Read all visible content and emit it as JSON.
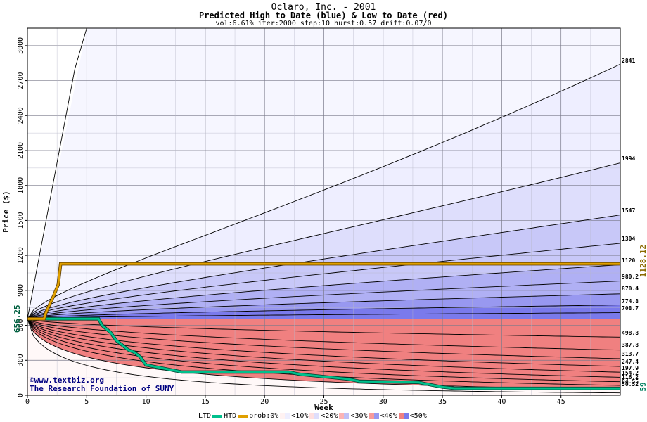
{
  "titles": {
    "main": "Oclaro, Inc. - 2001",
    "sub": "Predicted High to Date (blue) &  Low to Date (red)",
    "params": "vol:6.61% iter:2000 step:10 hurst:0.57 drift:0.07/0"
  },
  "credits": {
    "line1": "©www.textbiz.org",
    "line2": "The Research Foundation of SUNY"
  },
  "legend": {
    "ltd": "LTD",
    "htd": "HTD",
    "prob": "prob:0%",
    "b10": "<10%",
    "b20": "<20%",
    "b30": "<30%",
    "b40": "<40%",
    "b50": "<50%"
  },
  "colors": {
    "ltd": "#00c08c",
    "htd": "#e0a000",
    "blue_bands": [
      "#eeeeff",
      "#dedefc",
      "#c8c8f8",
      "#b0b0f4",
      "#9898f0",
      "#7a7aec"
    ],
    "red_bands": [
      "#fff2f2",
      "#ffe0e0",
      "#ffcccc",
      "#fcb4b4",
      "#f89a9a",
      "#f08080"
    ]
  },
  "chart_data": {
    "type": "line",
    "xlabel": "Week",
    "ylabel": "Price ($)",
    "xlim": [
      0,
      50
    ],
    "ylim": [
      0,
      3150
    ],
    "xticks": [
      0,
      5,
      10,
      15,
      20,
      25,
      30,
      35,
      40,
      45
    ],
    "yticks": [
      0,
      300,
      600,
      900,
      1200,
      1500,
      1800,
      2100,
      2400,
      2700,
      3000
    ],
    "start_price": 656.25,
    "start_label": "656.25",
    "current_high_label": "1128.12",
    "current_low_label": "59",
    "upper_curves": [
      2841,
      1994,
      1547,
      1304,
      1120,
      980.2,
      870.4,
      774.8,
      708.7
    ],
    "upper_labels": [
      "2841",
      "1994",
      "1547",
      "1304",
      "1120",
      "980.2",
      "870.4",
      "774.8",
      "708.7"
    ],
    "lower_curves": [
      498.8,
      387.8,
      313.7,
      247.4,
      197.9,
      154.2,
      116.2,
      84.55,
      50.52
    ],
    "lower_labels": [
      "498.8",
      "387.8",
      "313.7",
      "247.4",
      "197.9",
      "154.2",
      "116.2",
      "84.55",
      "50.52"
    ],
    "htd_series": {
      "name": "HTD",
      "x": [
        0,
        1.4,
        1.6,
        2.2,
        2.6,
        2.8,
        50
      ],
      "y": [
        656.25,
        656.25,
        720,
        850,
        950,
        1128.12,
        1128.12
      ]
    },
    "ltd_series": {
      "name": "LTD",
      "x": [
        0,
        6,
        6.3,
        7,
        7.5,
        8,
        8.5,
        9,
        9.5,
        10,
        11,
        12,
        13,
        22,
        23,
        25,
        27,
        28,
        33,
        34,
        35,
        36,
        50
      ],
      "y": [
        656.25,
        656.25,
        600,
        540,
        470,
        430,
        390,
        370,
        330,
        260,
        240,
        220,
        200,
        200,
        180,
        160,
        140,
        120,
        110,
        90,
        70,
        60,
        59
      ]
    }
  }
}
